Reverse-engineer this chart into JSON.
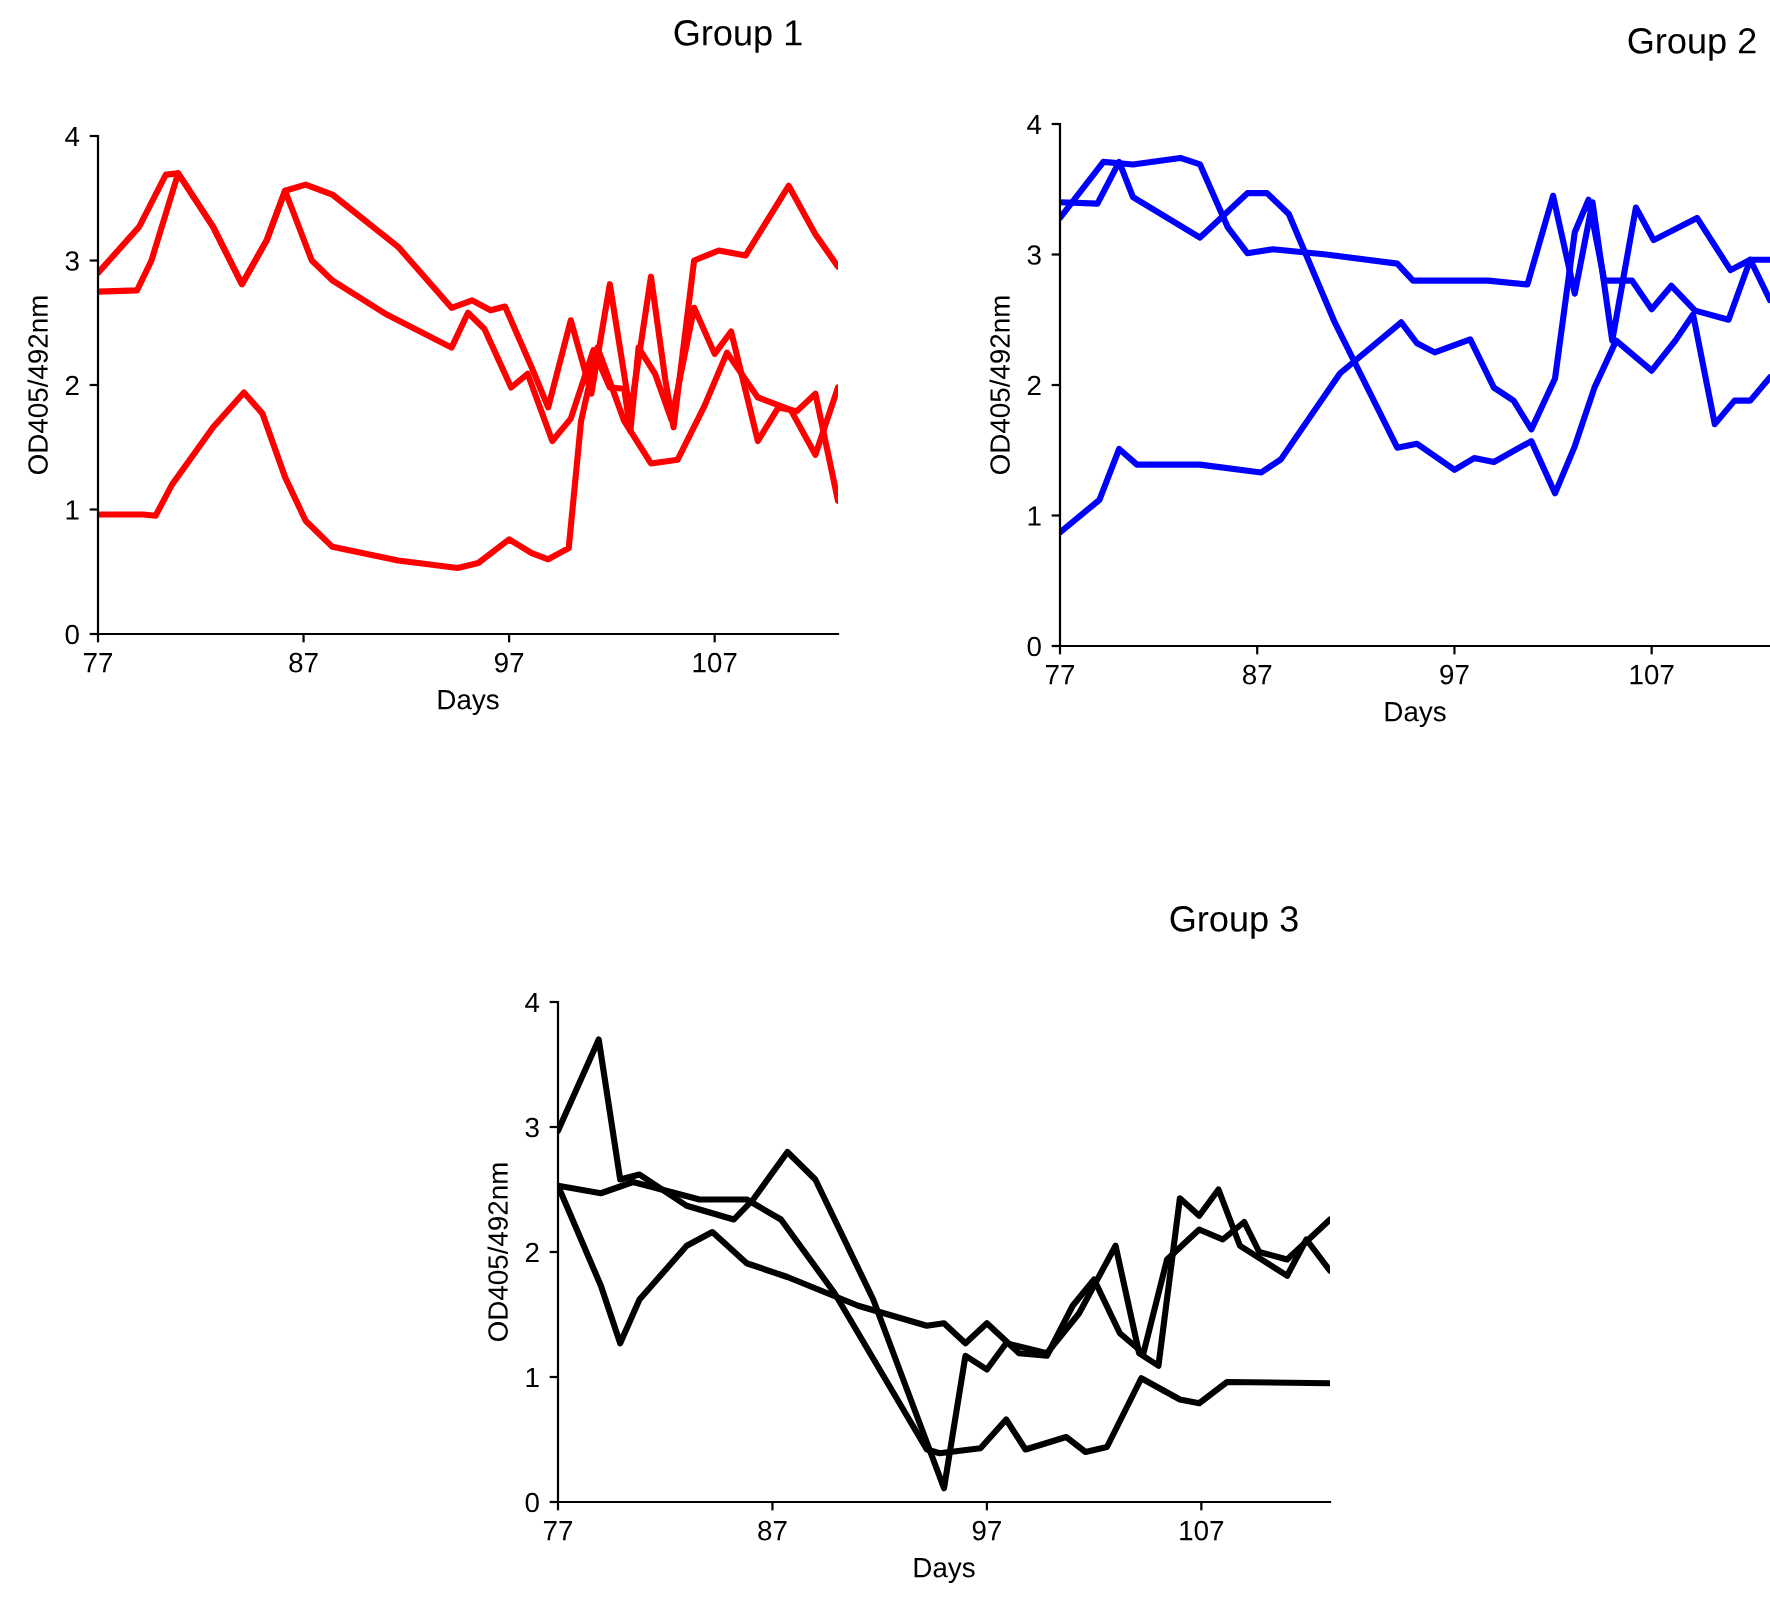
{
  "chart_data": [
    {
      "type": "line",
      "title": "Group 1",
      "xlabel": "Days",
      "ylabel": "OD405/492nm",
      "xlim": [
        77,
        113
      ],
      "xticks": [
        77,
        87,
        97,
        107
      ],
      "ylim": [
        0,
        4
      ],
      "yticks": [
        0,
        1,
        2,
        3,
        4
      ],
      "grid": false,
      "legend": false,
      "marker": "none",
      "line_style": "solid",
      "series": [
        {
          "color": "#ff0000",
          "x": [
            77,
            79,
            80.3,
            80.9,
            82.6,
            84,
            85.2,
            86.1,
            87.1,
            88.4,
            91.6,
            94.2,
            95.2,
            96.1,
            96.8,
            98.1,
            98.9,
            100,
            101,
            101.9,
            102.9,
            103.9,
            104.6,
            105,
            106,
            107.2,
            108.5,
            110.6,
            111.9,
            113
          ],
          "values": [
            2.9,
            3.27,
            3.69,
            3.7,
            3.27,
            2.81,
            3.16,
            3.56,
            3.61,
            3.53,
            3.11,
            2.62,
            2.68,
            2.6,
            2.63,
            2.14,
            1.82,
            2.52,
            1.93,
            2.81,
            1.77,
            2.87,
            2.04,
            1.66,
            3.0,
            3.08,
            3.04,
            3.6,
            3.21,
            2.95
          ]
        },
        {
          "color": "#ff0000",
          "x": [
            77,
            78.9,
            79.6,
            80.9,
            82.6,
            84,
            85.2,
            86.1,
            87.4,
            88.4,
            91,
            94.2,
            95,
            95.8,
            97.1,
            97.9,
            99.1,
            100,
            101.1,
            101.9,
            102.6,
            102.9,
            103.3,
            104.1,
            104.9,
            106,
            107,
            107.8,
            109.1,
            110.1,
            111,
            111.9,
            113
          ],
          "values": [
            2.75,
            2.76,
            3.0,
            3.7,
            3.27,
            2.81,
            3.16,
            3.56,
            3.0,
            2.84,
            2.57,
            2.3,
            2.58,
            2.45,
            1.98,
            2.09,
            1.55,
            1.73,
            2.28,
            1.98,
            1.97,
            1.63,
            2.3,
            2.09,
            1.72,
            2.62,
            2.25,
            2.43,
            1.55,
            1.82,
            1.79,
            1.93,
            1.07
          ]
        },
        {
          "color": "#ff0000",
          "x": [
            77,
            79.2,
            79.8,
            80.6,
            82.6,
            84.1,
            85,
            86.1,
            87.1,
            88.4,
            91.6,
            94.5,
            95.5,
            97,
            98.1,
            98.9,
            99.9,
            100.5,
            101.3,
            102.6,
            103.9,
            105.2,
            106.5,
            107.6,
            109.1,
            110.7,
            111.9,
            113
          ],
          "values": [
            0.96,
            0.96,
            0.95,
            1.2,
            1.66,
            1.94,
            1.77,
            1.26,
            0.91,
            0.7,
            0.59,
            0.53,
            0.57,
            0.76,
            0.65,
            0.6,
            0.69,
            1.71,
            2.3,
            1.71,
            1.37,
            1.4,
            1.83,
            2.26,
            1.9,
            1.8,
            1.44,
            1.98
          ]
        }
      ]
    },
    {
      "type": "line",
      "title": "Group 2",
      "xlabel": "Days",
      "ylabel": "OD405/492nm",
      "xlim": [
        77,
        113
      ],
      "xticks": [
        77,
        87,
        97,
        107
      ],
      "ylim": [
        0,
        4
      ],
      "yticks": [
        0,
        1,
        2,
        3,
        4
      ],
      "grid": false,
      "legend": false,
      "marker": "none",
      "line_style": "solid",
      "series": [
        {
          "color": "#0000ff",
          "x": [
            77,
            79.2,
            80.7,
            83.1,
            84.1,
            85.5,
            86.5,
            87.8,
            90.5,
            94.1,
            94.9,
            98.7,
            100.7,
            102,
            103.1,
            104,
            105,
            106.2,
            107.1,
            109.3,
            111,
            112,
            113
          ],
          "values": [
            3.28,
            3.71,
            3.69,
            3.74,
            3.69,
            3.21,
            3.01,
            3.04,
            3.0,
            2.93,
            2.8,
            2.8,
            2.77,
            3.45,
            2.7,
            3.4,
            2.34,
            3.36,
            3.11,
            3.28,
            2.88,
            2.96,
            2.96
          ]
        },
        {
          "color": "#0000ff",
          "x": [
            77,
            78.9,
            80,
            80.7,
            84.1,
            86.5,
            87.5,
            88.6,
            90.9,
            94.1,
            95.1,
            97,
            98,
            99,
            100.9,
            102.1,
            103.1,
            104.1,
            105.2,
            107,
            108.2,
            109.1,
            110.2,
            111.2,
            112,
            113
          ],
          "values": [
            3.4,
            3.39,
            3.71,
            3.44,
            3.13,
            3.47,
            3.47,
            3.31,
            2.49,
            1.52,
            1.55,
            1.35,
            1.44,
            1.41,
            1.57,
            1.17,
            1.53,
            1.98,
            2.34,
            2.11,
            2.34,
            2.54,
            1.7,
            1.88,
            1.88,
            2.06
          ]
        },
        {
          "color": "#0000ff",
          "x": [
            77,
            79,
            80,
            80.9,
            84.1,
            87.2,
            88.2,
            91.2,
            94.3,
            95.1,
            96,
            97.8,
            99,
            100,
            100.9,
            102.1,
            103.1,
            103.8,
            104.6,
            106,
            107,
            108,
            109.2,
            110.9,
            112,
            113
          ],
          "values": [
            0.87,
            1.12,
            1.51,
            1.39,
            1.39,
            1.33,
            1.43,
            2.09,
            2.48,
            2.32,
            2.25,
            2.35,
            1.98,
            1.88,
            1.66,
            2.05,
            3.17,
            3.42,
            2.8,
            2.8,
            2.58,
            2.76,
            2.57,
            2.5,
            2.96,
            2.65
          ]
        }
      ]
    },
    {
      "type": "line",
      "title": "Group 3",
      "xlabel": "Days",
      "ylabel": "OD405/492nm",
      "xlim": [
        77,
        113
      ],
      "xticks": [
        77,
        87,
        97,
        107
      ],
      "ylim": [
        0,
        4
      ],
      "yticks": [
        0,
        1,
        2,
        3,
        4
      ],
      "grid": false,
      "legend": false,
      "marker": "none",
      "line_style": "solid",
      "series": [
        {
          "color": "#000000",
          "x": [
            77,
            78.9,
            79.9,
            80.8,
            83,
            85.2,
            86.1,
            87.7,
            89,
            91.7,
            95,
            96,
            97,
            97.9,
            99.8,
            101.3,
            103,
            104.1,
            105,
            106,
            106.9,
            107.8,
            108.8,
            111,
            111.9,
            113
          ],
          "values": [
            2.97,
            3.7,
            2.58,
            2.62,
            2.37,
            2.26,
            2.42,
            2.8,
            2.58,
            1.62,
            0.11,
            1.17,
            1.06,
            1.27,
            1.19,
            1.51,
            2.05,
            1.19,
            1.09,
            2.43,
            2.29,
            2.5,
            2.05,
            1.81,
            2.1,
            1.85
          ]
        },
        {
          "color": "#000000",
          "x": [
            77,
            79,
            79.9,
            80.8,
            83,
            84.2,
            85.8,
            87.7,
            91,
            94.2,
            95,
            96,
            97,
            98.5,
            99.8,
            101,
            102,
            103.2,
            104.3,
            105.4,
            106.9,
            108,
            109,
            109.7,
            111,
            113
          ],
          "values": [
            2.53,
            1.73,
            1.27,
            1.62,
            2.05,
            2.16,
            1.91,
            1.8,
            1.57,
            1.41,
            1.43,
            1.27,
            1.43,
            1.19,
            1.17,
            1.57,
            1.78,
            1.35,
            1.19,
            1.94,
            2.18,
            2.1,
            2.24,
            2.0,
            1.94,
            2.26
          ]
        },
        {
          "color": "#000000",
          "x": [
            77,
            79,
            80.5,
            83.6,
            85.8,
            87.4,
            89.9,
            94.2,
            94.8,
            96.7,
            97.9,
            98.8,
            100.7,
            101.6,
            102.6,
            104.2,
            106,
            106.9,
            108.2,
            113
          ],
          "values": [
            2.53,
            2.47,
            2.56,
            2.42,
            2.42,
            2.26,
            1.67,
            0.42,
            0.39,
            0.43,
            0.66,
            0.42,
            0.52,
            0.4,
            0.44,
            0.99,
            0.82,
            0.79,
            0.96,
            0.95
          ]
        }
      ]
    }
  ]
}
